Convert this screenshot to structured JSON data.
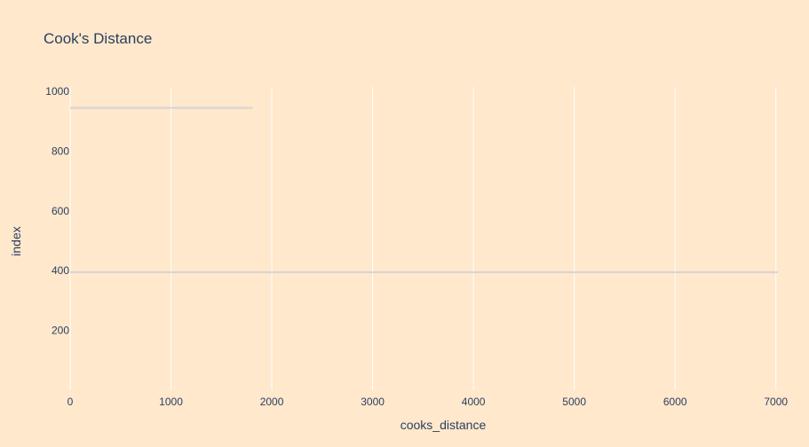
{
  "chart_data": {
    "type": "bar",
    "orientation": "horizontal",
    "title": "Cook's Distance",
    "xlabel": "cooks_distance",
    "ylabel": "index",
    "xlim": [
      0,
      7020
    ],
    "ylim": [
      0,
      1015
    ],
    "xticks": [
      "0",
      "1000",
      "2000",
      "3000",
      "4000",
      "5000",
      "6000",
      "7000"
    ],
    "yticks": [
      "200",
      "400",
      "600",
      "800",
      "1000"
    ],
    "bars": [
      {
        "index": 945,
        "value": 1810
      },
      {
        "index": 395,
        "value": 7020
      }
    ],
    "grid": "x",
    "background_color": "#ffe8cc",
    "grid_color": "#ffffff",
    "bar_color": "#d4d4d4",
    "text_color": "#2a3f5f"
  }
}
